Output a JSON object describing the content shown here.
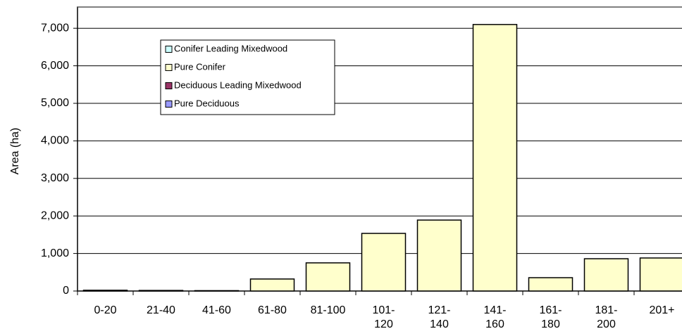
{
  "chart_data": {
    "type": "stacked_bar",
    "y_label": "Area (ha)",
    "categories": [
      "0-20",
      "21-40",
      "41-60",
      "61-80",
      "81-100",
      "101-120",
      "121-140",
      "141-160",
      "161-180",
      "181-200",
      "201+"
    ],
    "series": [
      {
        "name": "Conifer Leading Mixedwood",
        "color": "#ccffff",
        "values": [
          0,
          0,
          0,
          0,
          0,
          0,
          0,
          0,
          0,
          0,
          0
        ]
      },
      {
        "name": "Pure Conifer",
        "color": "#ffffcc",
        "values": [
          20,
          15,
          10,
          320,
          750,
          1535,
          1890,
          7100,
          355,
          860,
          880
        ]
      },
      {
        "name": "Deciduous Leading Mixedwood",
        "color": "#993366",
        "values": [
          0,
          0,
          0,
          0,
          0,
          0,
          0,
          0,
          0,
          0,
          0
        ]
      },
      {
        "name": "Pure Deciduous",
        "color": "#9999ff",
        "values": [
          0,
          0,
          0,
          0,
          0,
          0,
          0,
          0,
          0,
          0,
          0
        ]
      }
    ],
    "ylim": [
      0,
      7500
    ],
    "yticks": [
      0,
      {
        "value": 1000,
        "label": "1,000"
      },
      {
        "value": 2000,
        "label": "2,000"
      },
      {
        "value": 3000,
        "label": "3,000"
      },
      {
        "value": 4000,
        "label": "4,000"
      },
      {
        "value": 5000,
        "label": "5,000"
      },
      {
        "value": 6000,
        "label": "6,000"
      },
      {
        "value": 7000,
        "label": "7,000"
      }
    ],
    "grid": true
  }
}
